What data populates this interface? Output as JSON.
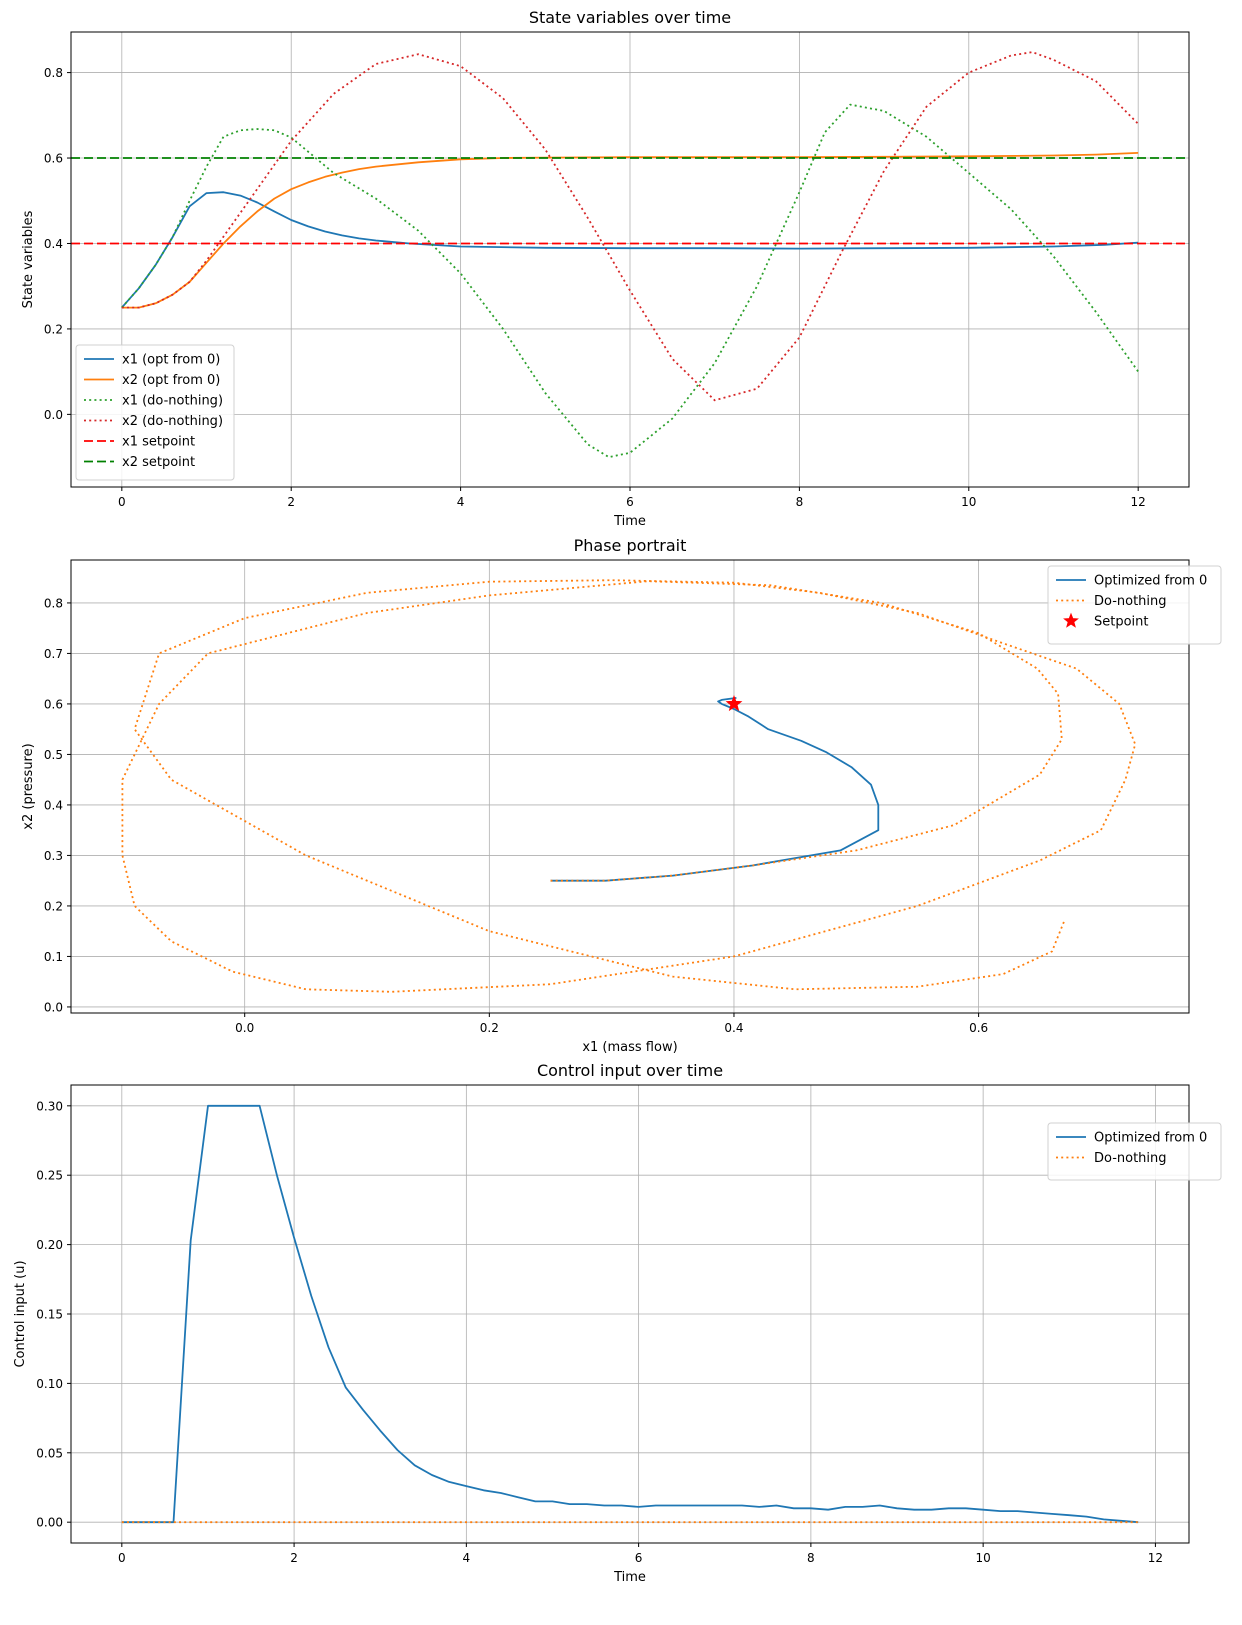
{
  "chart_data": [
    {
      "type": "line",
      "title": "State variables over time",
      "xlabel": "Time",
      "ylabel": "State variables",
      "xlim": [
        -0.6,
        12.6
      ],
      "ylim": [
        -0.17,
        0.895
      ],
      "xticks": [
        0,
        2,
        4,
        6,
        8,
        10,
        12
      ],
      "xtick_labels": [
        "0",
        "2",
        "4",
        "6",
        "8",
        "10",
        "12"
      ],
      "yticks": [
        0.0,
        0.2,
        0.4,
        0.6,
        0.8
      ],
      "ytick_labels": [
        "0.0",
        "0.2",
        "0.4",
        "0.6",
        "0.8"
      ],
      "grid": true,
      "legend_position": "lower-left",
      "series": [
        {
          "name": "x1 (opt from 0)",
          "color": "#1f77b4",
          "style": "solid",
          "x": [
            0,
            0.2,
            0.4,
            0.6,
            0.8,
            1.0,
            1.2,
            1.4,
            1.6,
            1.8,
            2.0,
            2.2,
            2.4,
            2.6,
            2.8,
            3.0,
            3.4,
            4.0,
            5.0,
            6.0,
            7.0,
            8.0,
            9.0,
            10.0,
            11.0,
            11.6,
            12.0
          ],
          "y": [
            0.25,
            0.295,
            0.35,
            0.415,
            0.487,
            0.518,
            0.52,
            0.512,
            0.496,
            0.475,
            0.455,
            0.44,
            0.428,
            0.419,
            0.412,
            0.407,
            0.4,
            0.393,
            0.39,
            0.389,
            0.389,
            0.388,
            0.389,
            0.39,
            0.393,
            0.397,
            0.402
          ]
        },
        {
          "name": "x2 (opt from 0)",
          "color": "#ff7f0e",
          "style": "solid",
          "x": [
            0,
            0.2,
            0.4,
            0.6,
            0.8,
            1.0,
            1.2,
            1.4,
            1.6,
            1.8,
            2.0,
            2.2,
            2.4,
            2.6,
            2.8,
            3.0,
            3.5,
            4.0,
            4.5,
            5.0,
            6.0,
            7.0,
            8.0,
            9.0,
            10.0,
            11.0,
            11.5,
            12.0
          ],
          "y": [
            0.25,
            0.25,
            0.26,
            0.28,
            0.31,
            0.355,
            0.4,
            0.44,
            0.475,
            0.505,
            0.527,
            0.543,
            0.556,
            0.566,
            0.574,
            0.58,
            0.59,
            0.597,
            0.6,
            0.601,
            0.602,
            0.602,
            0.602,
            0.603,
            0.604,
            0.606,
            0.608,
            0.612
          ]
        },
        {
          "name": "x1 (do-nothing)",
          "color": "#2ca02c",
          "style": "dotted",
          "x": [
            0,
            0.2,
            0.4,
            0.6,
            0.8,
            1.0,
            1.2,
            1.4,
            1.6,
            1.8,
            2.0,
            2.5,
            3.0,
            3.5,
            4.0,
            4.5,
            5.0,
            5.5,
            5.75,
            6.0,
            6.5,
            7.0,
            7.5,
            8.0,
            8.3,
            8.6,
            9.0,
            9.5,
            10.0,
            10.5,
            11.0,
            11.5,
            12.0
          ],
          "y": [
            0.25,
            0.295,
            0.35,
            0.415,
            0.5,
            0.58,
            0.65,
            0.665,
            0.668,
            0.665,
            0.648,
            0.565,
            0.505,
            0.43,
            0.33,
            0.2,
            0.05,
            -0.07,
            -0.1,
            -0.09,
            -0.01,
            0.12,
            0.3,
            0.52,
            0.66,
            0.725,
            0.71,
            0.65,
            0.565,
            0.48,
            0.37,
            0.24,
            0.1
          ]
        },
        {
          "name": "x2 (do-nothing)",
          "color": "#d62728",
          "style": "dotted",
          "x": [
            0,
            0.2,
            0.4,
            0.6,
            0.8,
            1.0,
            1.5,
            2.0,
            2.5,
            3.0,
            3.5,
            4.0,
            4.5,
            5.0,
            5.5,
            6.0,
            6.5,
            7.0,
            7.5,
            8.0,
            8.5,
            9.0,
            9.5,
            10.0,
            10.5,
            10.75,
            11.0,
            11.5,
            12.0
          ],
          "y": [
            0.25,
            0.25,
            0.26,
            0.28,
            0.31,
            0.36,
            0.5,
            0.64,
            0.75,
            0.82,
            0.843,
            0.815,
            0.74,
            0.62,
            0.46,
            0.29,
            0.13,
            0.033,
            0.06,
            0.18,
            0.38,
            0.57,
            0.72,
            0.8,
            0.84,
            0.848,
            0.83,
            0.78,
            0.68
          ]
        },
        {
          "name": "x1 setpoint",
          "color": "#ff0000",
          "style": "dashed",
          "hline": 0.4
        },
        {
          "name": "x2 setpoint",
          "color": "#008000",
          "style": "dashed",
          "hline": 0.6
        }
      ]
    },
    {
      "type": "line",
      "title": "Phase portrait",
      "xlabel": "x1 (mass flow)",
      "ylabel": "x2 (pressure)",
      "xlim": [
        -0.142,
        0.772
      ],
      "ylim": [
        -0.012,
        0.885
      ],
      "xticks": [
        0.0,
        0.2,
        0.4,
        0.6
      ],
      "xtick_labels": [
        "0.0",
        "0.2",
        "0.4",
        "0.6"
      ],
      "yticks": [
        0.0,
        0.1,
        0.2,
        0.3,
        0.4,
        0.5,
        0.6,
        0.7,
        0.8
      ],
      "ytick_labels": [
        "0.0",
        "0.1",
        "0.2",
        "0.3",
        "0.4",
        "0.5",
        "0.6",
        "0.7",
        "0.8"
      ],
      "grid": true,
      "legend_position": "upper-right",
      "series": [
        {
          "name": "Optimized from 0",
          "color": "#1f77b4",
          "style": "solid",
          "x": [
            0.25,
            0.295,
            0.35,
            0.415,
            0.487,
            0.518,
            0.518,
            0.512,
            0.496,
            0.475,
            0.455,
            0.428,
            0.412,
            0.4,
            0.39,
            0.387,
            0.39,
            0.402
          ],
          "y": [
            0.25,
            0.25,
            0.26,
            0.28,
            0.31,
            0.35,
            0.4,
            0.44,
            0.475,
            0.505,
            0.527,
            0.55,
            0.575,
            0.59,
            0.6,
            0.605,
            0.608,
            0.612
          ]
        },
        {
          "name": "Do-nothing",
          "color": "#ff7f0e",
          "style": "dotted",
          "x": [
            0.25,
            0.295,
            0.35,
            0.415,
            0.5,
            0.58,
            0.65,
            0.668,
            0.665,
            0.648,
            0.6,
            0.52,
            0.43,
            0.33,
            0.2,
            0.1,
            -0.03,
            -0.07,
            -0.1,
            -0.1,
            -0.09,
            -0.06,
            -0.01,
            0.05,
            0.12,
            0.25,
            0.4,
            0.55,
            0.65,
            0.7,
            0.72,
            0.728,
            0.715,
            0.68,
            0.62,
            0.55,
            0.47,
            0.4,
            0.3,
            0.2,
            0.1,
            0.0,
            -0.07,
            -0.09,
            -0.06,
            0.05,
            0.2,
            0.35,
            0.45,
            0.55,
            0.62,
            0.66,
            0.67
          ],
          "y": [
            0.25,
            0.25,
            0.26,
            0.28,
            0.31,
            0.36,
            0.46,
            0.53,
            0.62,
            0.67,
            0.74,
            0.8,
            0.835,
            0.843,
            0.815,
            0.78,
            0.7,
            0.6,
            0.45,
            0.3,
            0.2,
            0.13,
            0.07,
            0.035,
            0.03,
            0.045,
            0.1,
            0.2,
            0.29,
            0.35,
            0.45,
            0.52,
            0.6,
            0.67,
            0.72,
            0.78,
            0.82,
            0.84,
            0.845,
            0.842,
            0.82,
            0.77,
            0.7,
            0.55,
            0.45,
            0.3,
            0.15,
            0.06,
            0.035,
            0.04,
            0.065,
            0.11,
            0.17
          ]
        },
        {
          "name": "Setpoint",
          "color": "#ff0000",
          "style": "star",
          "x": [
            0.4
          ],
          "y": [
            0.6
          ]
        }
      ]
    },
    {
      "type": "line",
      "title": "Control input over time",
      "xlabel": "Time",
      "ylabel": "Control input (u)",
      "xlim": [
        -0.59,
        12.39
      ],
      "ylim": [
        -0.015,
        0.315
      ],
      "xticks": [
        0,
        2,
        4,
        6,
        8,
        10,
        12
      ],
      "xtick_labels": [
        "0",
        "2",
        "4",
        "6",
        "8",
        "10",
        "12"
      ],
      "yticks": [
        0.0,
        0.05,
        0.1,
        0.15,
        0.2,
        0.25,
        0.3
      ],
      "ytick_labels": [
        "0.00",
        "0.05",
        "0.10",
        "0.15",
        "0.20",
        "0.25",
        "0.30"
      ],
      "grid": true,
      "legend_position": "upper-right",
      "series": [
        {
          "name": "Optimized from 0",
          "color": "#1f77b4",
          "style": "solid",
          "x": [
            0,
            0.2,
            0.4,
            0.6,
            0.8,
            1.0,
            1.2,
            1.4,
            1.6,
            1.8,
            2.0,
            2.2,
            2.4,
            2.6,
            2.8,
            3.0,
            3.2,
            3.4,
            3.6,
            3.8,
            4.0,
            4.2,
            4.4,
            4.6,
            4.8,
            5.0,
            5.2,
            5.4,
            5.6,
            5.8,
            6.0,
            6.2,
            6.4,
            6.6,
            6.8,
            7.0,
            7.2,
            7.4,
            7.6,
            7.8,
            8.0,
            8.2,
            8.4,
            8.6,
            8.8,
            9.0,
            9.2,
            9.4,
            9.6,
            9.8,
            10.0,
            10.2,
            10.4,
            10.6,
            10.8,
            11.0,
            11.2,
            11.4,
            11.6,
            11.8
          ],
          "y": [
            0,
            0,
            0,
            0,
            0.203,
            0.3,
            0.3,
            0.3,
            0.3,
            0.25,
            0.205,
            0.163,
            0.126,
            0.097,
            0.081,
            0.066,
            0.052,
            0.041,
            0.034,
            0.029,
            0.026,
            0.023,
            0.021,
            0.018,
            0.015,
            0.015,
            0.013,
            0.013,
            0.012,
            0.012,
            0.011,
            0.012,
            0.012,
            0.012,
            0.012,
            0.012,
            0.012,
            0.011,
            0.012,
            0.01,
            0.01,
            0.009,
            0.011,
            0.011,
            0.012,
            0.01,
            0.009,
            0.009,
            0.01,
            0.01,
            0.009,
            0.008,
            0.008,
            0.007,
            0.006,
            0.005,
            0.004,
            0.002,
            0.001,
            0
          ]
        },
        {
          "name": "Do-nothing",
          "color": "#ff7f0e",
          "style": "dotted",
          "x": [
            0,
            11.8
          ],
          "y": [
            0,
            0
          ]
        }
      ]
    }
  ]
}
